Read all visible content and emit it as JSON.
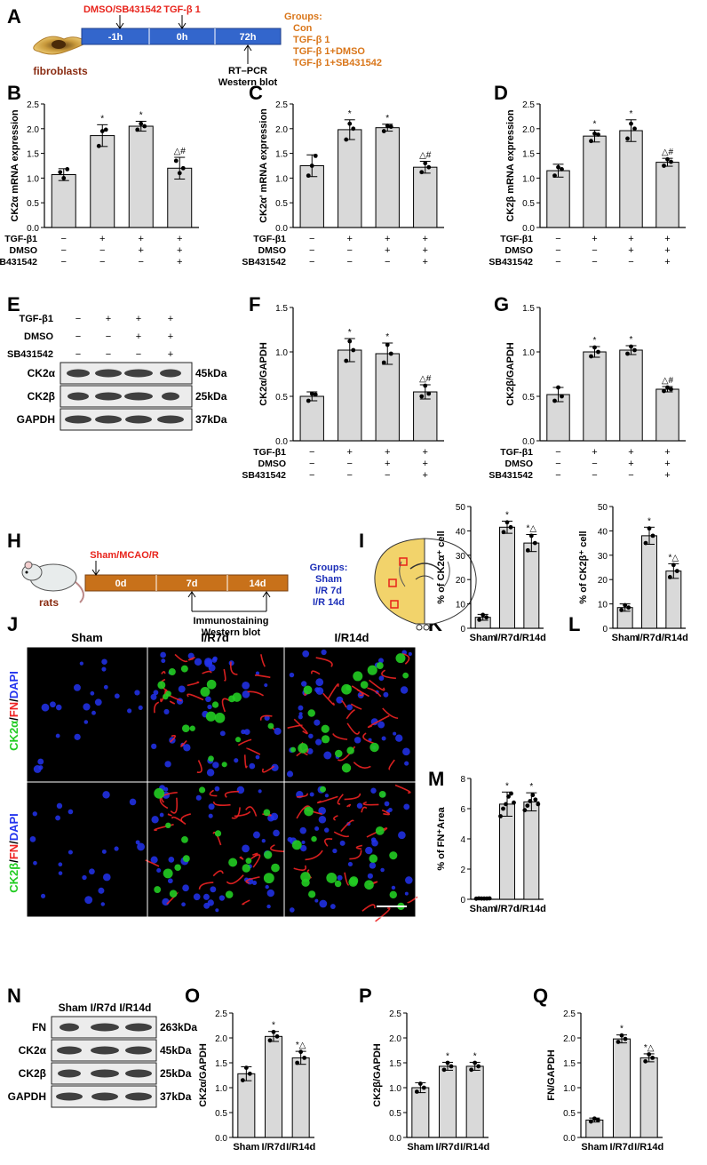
{
  "panel_labels": [
    "A",
    "B",
    "C",
    "D",
    "E",
    "F",
    "G",
    "H",
    "I",
    "J",
    "K",
    "L",
    "M",
    "N",
    "O",
    "P",
    "Q"
  ],
  "colors": {
    "bar_fill": "#d9d9d9",
    "red_label": "#e8231b",
    "orange_label": "#d9761a",
    "blue_label": "#1c2fb8",
    "timeline_blue": "#3366cc",
    "timeline_orange": "#c8711a",
    "brain_yellow": "#f2d36b",
    "green_channel": "#22cc22",
    "red_channel": "#ee2222",
    "blue_channel": "#2233ee"
  },
  "panel_a": {
    "treatment1": "DMSO/SB431542",
    "treatment2": "TGF-β 1",
    "cell_label": "fibroblasts",
    "timepoints": [
      "-1h",
      "0h",
      "72h"
    ],
    "assay": [
      "RT–PCR",
      "Western blot"
    ],
    "groups_title": "Groups:",
    "groups": [
      "Con",
      "TGF-β 1",
      "TGF-β 1+DMSO",
      "TGF-β 1+SB431542"
    ]
  },
  "treat_table": {
    "rows": [
      {
        "label": "TGF-β1",
        "signs": [
          "−",
          "+",
          "+",
          "+"
        ]
      },
      {
        "label": "DMSO",
        "signs": [
          "−",
          "−",
          "+",
          "+"
        ]
      },
      {
        "label": "SB431542",
        "signs": [
          "−",
          "−",
          "−",
          "+"
        ]
      }
    ]
  },
  "panel_e": {
    "bands": [
      {
        "name": "CK2α",
        "kda": "45kDa"
      },
      {
        "name": "CK2β",
        "kda": "25kDa"
      },
      {
        "name": "GAPDH",
        "kda": "37kDa"
      }
    ]
  },
  "panel_h": {
    "treatment": "Sham/MCAO/R",
    "animal": "rats",
    "timepoints": [
      "0d",
      "7d",
      "14d"
    ],
    "assay": [
      "Immunostaining",
      "Western blot"
    ],
    "groups_title": "Groups:",
    "groups": [
      "Sham",
      "I/R 7d",
      "I/R 14d"
    ]
  },
  "panel_j": {
    "columns": [
      "Sham",
      "I/R7d",
      "I/R14d"
    ],
    "row1_label": [
      "CK2α",
      "/",
      "FN",
      "/",
      "DAPI"
    ],
    "row2_label": [
      "CK2β",
      "/",
      "FN",
      "/",
      "DAPI"
    ]
  },
  "panel_n": {
    "header": "Sham I/R7d I/R14d",
    "bands": [
      {
        "name": "FN",
        "kda": "263kDa"
      },
      {
        "name": "CK2α",
        "kda": "45kDa"
      },
      {
        "name": "CK2β",
        "kda": "25kDa"
      },
      {
        "name": "GAPDH",
        "kda": "37kDa"
      }
    ]
  },
  "chart_data": [
    {
      "panel": "B",
      "type": "bar",
      "ylabel": "CK2α mRNA expression",
      "ylim": [
        0,
        2.5
      ],
      "ticks": [
        0,
        0.5,
        1.0,
        1.5,
        2.0,
        2.5
      ],
      "values": [
        1.07,
        1.86,
        2.05,
        1.2
      ],
      "errors": [
        0.12,
        0.22,
        0.1,
        0.22
      ],
      "points": [
        [
          1.12,
          1.0,
          1.18
        ],
        [
          1.65,
          1.95,
          1.98
        ],
        [
          1.98,
          2.1,
          2.05
        ],
        [
          1.35,
          1.1,
          1.2
        ]
      ],
      "annotations": [
        "",
        "*",
        "*",
        "△#"
      ]
    },
    {
      "panel": "C",
      "type": "bar",
      "ylabel": "CK2α' mRNA expression",
      "ylim": [
        0,
        2.5
      ],
      "ticks": [
        0,
        0.5,
        1.0,
        1.5,
        2.0,
        2.5
      ],
      "values": [
        1.25,
        1.98,
        2.02,
        1.22
      ],
      "errors": [
        0.22,
        0.2,
        0.07,
        0.12
      ],
      "points": [
        [
          1.05,
          1.25,
          1.45
        ],
        [
          1.78,
          2.1,
          2.0
        ],
        [
          1.95,
          2.06,
          2.04
        ],
        [
          1.12,
          1.3,
          1.22
        ]
      ],
      "annotations": [
        "",
        "*",
        "*",
        "△#"
      ]
    },
    {
      "panel": "D",
      "type": "bar",
      "ylabel": "CK2β mRNA expression",
      "ylim": [
        0,
        2.5
      ],
      "ticks": [
        0,
        0.5,
        1.0,
        1.5,
        2.0,
        2.5
      ],
      "values": [
        1.15,
        1.85,
        1.96,
        1.32
      ],
      "errors": [
        0.13,
        0.12,
        0.22,
        0.08
      ],
      "points": [
        [
          1.05,
          1.22,
          1.18
        ],
        [
          1.75,
          1.9,
          1.88
        ],
        [
          1.8,
          2.1,
          2.0
        ],
        [
          1.25,
          1.38,
          1.33
        ]
      ],
      "annotations": [
        "",
        "*",
        "*",
        "△#"
      ]
    },
    {
      "panel": "F",
      "type": "bar",
      "ylabel": "CK2α/GAPDH",
      "ylim": [
        0,
        1.5
      ],
      "ticks": [
        0,
        0.5,
        1.0,
        1.5
      ],
      "values": [
        0.5,
        1.02,
        0.98,
        0.55
      ],
      "errors": [
        0.05,
        0.13,
        0.12,
        0.08
      ],
      "points": [
        [
          0.45,
          0.53,
          0.52
        ],
        [
          0.9,
          1.12,
          1.02
        ],
        [
          0.88,
          1.08,
          0.98
        ],
        [
          0.5,
          0.62,
          0.53
        ]
      ],
      "annotations": [
        "",
        "*",
        "*",
        "△#"
      ]
    },
    {
      "panel": "G",
      "type": "bar",
      "ylabel": "CK2β/GAPDH",
      "ylim": [
        0,
        1.5
      ],
      "ticks": [
        0,
        0.5,
        1.0,
        1.5
      ],
      "values": [
        0.52,
        1.0,
        1.02,
        0.58
      ],
      "errors": [
        0.08,
        0.06,
        0.05,
        0.03
      ],
      "points": [
        [
          0.45,
          0.6,
          0.5
        ],
        [
          0.95,
          1.05,
          1.0
        ],
        [
          0.98,
          1.06,
          1.02
        ],
        [
          0.56,
          0.6,
          0.58
        ]
      ],
      "annotations": [
        "",
        "*",
        "*",
        "△#"
      ]
    },
    {
      "panel": "K",
      "type": "bar",
      "ylabel": "% of CK2α⁺ cell",
      "ylim": [
        0,
        50
      ],
      "ticks": [
        0,
        10,
        20,
        30,
        40,
        50
      ],
      "categories": [
        "Sham",
        "I/R7d",
        "I/R14d"
      ],
      "values": [
        4.5,
        41.5,
        35.0
      ],
      "errors": [
        1.2,
        2.5,
        3.5
      ],
      "points": [
        [
          3.5,
          5.5,
          4.5
        ],
        [
          39.5,
          43.5,
          41.5
        ],
        [
          32,
          38,
          35
        ]
      ],
      "annotations": [
        "",
        "*",
        "*△"
      ]
    },
    {
      "panel": "L",
      "type": "bar",
      "ylabel": "% of CK2β⁺ cell",
      "ylim": [
        0,
        50
      ],
      "ticks": [
        0,
        10,
        20,
        30,
        40,
        50
      ],
      "categories": [
        "Sham",
        "I/R7d",
        "I/R14d"
      ],
      "values": [
        8.5,
        38.0,
        23.5
      ],
      "errors": [
        1.5,
        3.5,
        3.0
      ],
      "points": [
        [
          7.5,
          9.5,
          8.5
        ],
        [
          35,
          41,
          38
        ],
        [
          21,
          26,
          23.5
        ]
      ],
      "annotations": [
        "",
        "*",
        "*△"
      ]
    },
    {
      "panel": "M",
      "type": "bar",
      "ylabel": "% of FN⁺Area",
      "ylim": [
        0,
        8
      ],
      "ticks": [
        0,
        2,
        4,
        6,
        8
      ],
      "categories": [
        "Sham",
        "I/R7d",
        "I/R14d"
      ],
      "values": [
        0.05,
        6.3,
        6.45
      ],
      "errors": [
        0.03,
        0.8,
        0.6
      ],
      "points": [
        [
          0.04,
          0.06,
          0.05,
          0.05,
          0.05,
          0.06
        ],
        [
          5.5,
          6.0,
          6.3,
          6.8,
          7.0,
          6.4
        ],
        [
          5.9,
          6.2,
          6.5,
          6.9,
          6.6,
          6.3
        ]
      ],
      "annotations": [
        "",
        "*",
        "*"
      ]
    },
    {
      "panel": "O",
      "type": "bar",
      "ylabel": "CK2α/GAPDH",
      "ylim": [
        0,
        2.5
      ],
      "ticks": [
        0,
        0.5,
        1.0,
        1.5,
        2.0,
        2.5
      ],
      "categories": [
        "Sham",
        "I/R7d",
        "I/R14d"
      ],
      "values": [
        1.28,
        2.03,
        1.6
      ],
      "errors": [
        0.14,
        0.1,
        0.13
      ],
      "points": [
        [
          1.15,
          1.4,
          1.28
        ],
        [
          1.95,
          2.12,
          2.03
        ],
        [
          1.5,
          1.72,
          1.6
        ]
      ],
      "annotations": [
        "",
        "*",
        "*△"
      ]
    },
    {
      "panel": "P",
      "type": "bar",
      "ylabel": "CK2β/GAPDH",
      "ylim": [
        0,
        2.5
      ],
      "ticks": [
        0,
        0.5,
        1.0,
        1.5,
        2.0,
        2.5
      ],
      "categories": [
        "Sham",
        "I/R7d",
        "I/R14d"
      ],
      "values": [
        1.0,
        1.43,
        1.43
      ],
      "errors": [
        0.1,
        0.08,
        0.08
      ],
      "points": [
        [
          0.92,
          1.08,
          1.0
        ],
        [
          1.36,
          1.5,
          1.43
        ],
        [
          1.36,
          1.5,
          1.43
        ]
      ],
      "annotations": [
        "",
        "*",
        "*"
      ]
    },
    {
      "panel": "Q",
      "type": "bar",
      "ylabel": "FN/GAPDH",
      "ylim": [
        0,
        2.5
      ],
      "ticks": [
        0,
        0.5,
        1.0,
        1.5,
        2.0,
        2.5
      ],
      "categories": [
        "Sham",
        "I/R7d",
        "I/R14d"
      ],
      "values": [
        0.35,
        1.98,
        1.6
      ],
      "errors": [
        0.04,
        0.08,
        0.08
      ],
      "points": [
        [
          0.32,
          0.38,
          0.35
        ],
        [
          1.92,
          2.05,
          1.98
        ],
        [
          1.53,
          1.67,
          1.6
        ]
      ],
      "annotations": [
        "",
        "*",
        "*△"
      ]
    }
  ]
}
